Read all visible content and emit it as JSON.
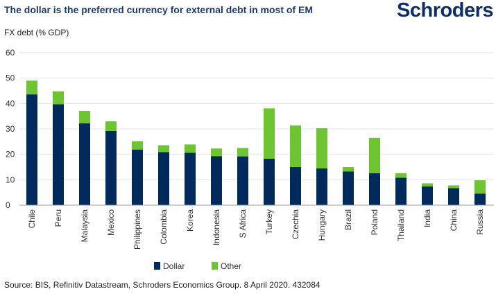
{
  "header": {
    "title": "The dollar is the preferred currency for external debt in most of EM",
    "logo": "Schroders"
  },
  "source": "Source: BIS, Refinitiv Datastream, Schroders Economics Group. 8 April 2020. 432084",
  "chart_data": {
    "type": "bar",
    "stacked": true,
    "title": "The dollar is the preferred currency for external debt in most of EM",
    "ylabel": "FX debt (% GDP)",
    "xlabel": "",
    "ylim": [
      0,
      60
    ],
    "yticks": [
      0,
      10,
      20,
      30,
      40,
      50,
      60
    ],
    "grid": true,
    "legend": "bottom-center",
    "categories": [
      "Chile",
      "Peru",
      "Malaysia",
      "Mexico",
      "Philippines",
      "Colombia",
      "Korea",
      "Indonesia",
      "S Africa",
      "Turkey",
      "Czechia",
      "Hungary",
      "Brazil",
      "Poland",
      "Thailand",
      "India",
      "China",
      "Russia"
    ],
    "series": [
      {
        "name": "Dollar",
        "color": "#002a5c",
        "values": [
          43.6,
          39.7,
          32.2,
          29.2,
          21.9,
          20.9,
          20.6,
          19.3,
          19.2,
          18.3,
          15.0,
          14.5,
          13.3,
          12.6,
          10.8,
          7.4,
          6.7,
          4.5
        ]
      },
      {
        "name": "Other",
        "color": "#6cc531",
        "values": [
          5.4,
          5.1,
          4.9,
          3.8,
          3.3,
          2.7,
          3.3,
          3.0,
          3.3,
          19.8,
          16.4,
          15.8,
          1.7,
          13.9,
          1.8,
          1.2,
          1.1,
          5.3
        ]
      }
    ]
  }
}
